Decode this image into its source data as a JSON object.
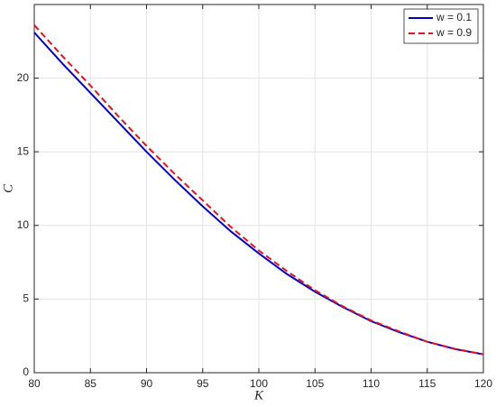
{
  "chart_data": {
    "type": "line",
    "x_label": "K",
    "y_label": "C",
    "x": [
      80,
      82.5,
      85,
      87.5,
      90,
      92.5,
      95,
      97.5,
      100,
      102.5,
      105,
      107.5,
      110,
      112.5,
      115,
      117.5,
      120
    ],
    "series": [
      {
        "name": "w = 0.1",
        "color": "#0000cc",
        "dash": "solid",
        "values": [
          23.1,
          21.0,
          19.0,
          17.0,
          15.0,
          13.1,
          11.3,
          9.6,
          8.1,
          6.7,
          5.5,
          4.45,
          3.5,
          2.75,
          2.1,
          1.6,
          1.25
        ]
      },
      {
        "name": "w = 0.9",
        "color": "#e8121b",
        "dash": "dashed",
        "values": [
          23.6,
          21.5,
          19.5,
          17.4,
          15.4,
          13.5,
          11.7,
          9.9,
          8.3,
          6.9,
          5.6,
          4.5,
          3.55,
          2.8,
          2.1,
          1.62,
          1.25
        ]
      }
    ],
    "xlim": [
      80,
      120
    ],
    "xticks": [
      80,
      85,
      90,
      95,
      100,
      105,
      110,
      115,
      120
    ],
    "ylim": [
      0,
      25
    ],
    "yticks": [
      0,
      5,
      10,
      15,
      20
    ],
    "grid": true,
    "legend": "top-right"
  }
}
